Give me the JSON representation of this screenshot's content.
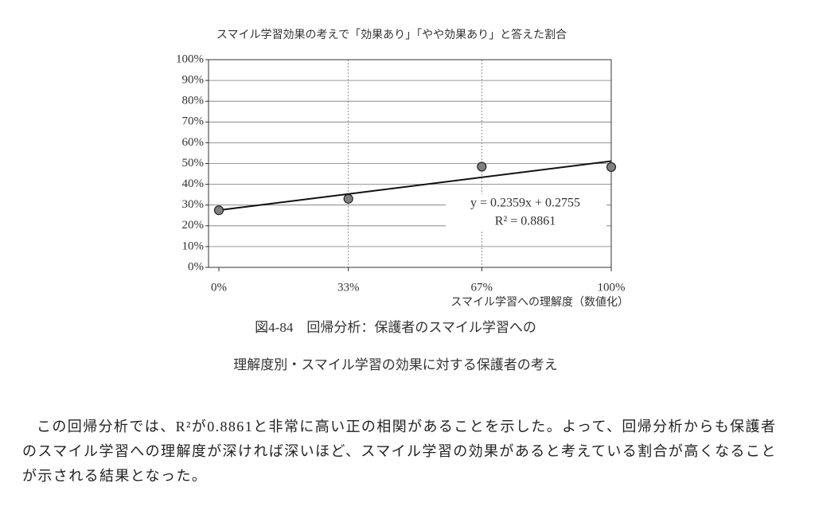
{
  "chart_data": {
    "type": "scatter",
    "title": "スマイル学習効果の考えで「効果あり」「やや効果あり」と答えた割合",
    "x_label": "スマイル学習への理解度（数値化）",
    "x": [
      0,
      0.33,
      0.67,
      1
    ],
    "values": [
      0.275,
      0.33,
      0.485,
      0.483
    ],
    "color": "#808080",
    "xlim": [
      0,
      1
    ],
    "xticks": [
      {
        "value": 0,
        "label": "0%"
      },
      {
        "value": 0.33,
        "label": "33%"
      },
      {
        "value": 0.67,
        "label": "67%"
      },
      {
        "value": 1,
        "label": "100%"
      }
    ],
    "ylim": [
      0,
      1
    ],
    "yticks": [
      {
        "value": 0,
        "label": "0%"
      },
      {
        "value": 0.1,
        "label": "10%"
      },
      {
        "value": 0.2,
        "label": "20%"
      },
      {
        "value": 0.3,
        "label": "30%"
      },
      {
        "value": 0.4,
        "label": "40%"
      },
      {
        "value": 0.5,
        "label": "50%"
      },
      {
        "value": 0.6,
        "label": "60%"
      },
      {
        "value": 0.7,
        "label": "70%"
      },
      {
        "value": 0.8,
        "label": "80%"
      },
      {
        "value": 0.9,
        "label": "90%"
      },
      {
        "value": 1,
        "label": "100%"
      }
    ],
    "grid": true,
    "trendline": {
      "slope": 0.2359,
      "intercept": 0.2755,
      "equation": "y = 0.2359x + 0.2755",
      "r2": "R² = 0.8861"
    }
  },
  "caption": [
    "図4-84　回帰分析：保護者のスマイル学習への",
    "理解度別・スマイル学習の効果に対する保護者の考え"
  ],
  "paragraph": "この回帰分析では、R²が0.8861と非常に高い正の相関があることを示した。よって、回帰分析からも保護者のスマイル学習への理解度が深ければ深いほど、スマイル学習の効果があると考えている割合が高くなることが示される結果となった。"
}
